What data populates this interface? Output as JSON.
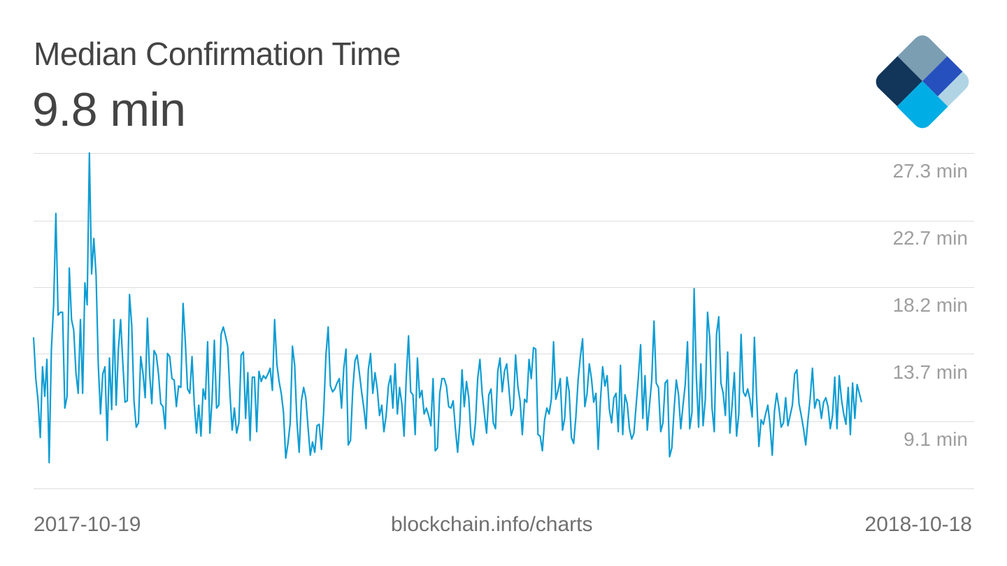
{
  "header": {
    "title": "Median Confirmation Time",
    "current_value": "9.8 min"
  },
  "logo": {
    "icon": "blockchain-diamond-logo-icon",
    "colors": {
      "top": "#7b9eb2",
      "left": "#12355a",
      "right": "#2650bd",
      "far_right": "#b0d4e4",
      "bottom": "#00ade4"
    }
  },
  "footer": {
    "start_date": "2017-10-19",
    "source": "blockchain.info/charts",
    "end_date": "2018-10-18"
  },
  "y_axis": {
    "labels": [
      "27.3 min",
      "22.7 min",
      "18.2 min",
      "13.7 min",
      "9.1 min"
    ]
  },
  "colors": {
    "line": "#0e9dd3",
    "grid": "#dddddd",
    "title_text": "#444444",
    "axis_text": "#9e9e9e",
    "footer_text": "#707070"
  },
  "chart_data": {
    "type": "line",
    "title": "Median Confirmation Time",
    "subtitle": "9.8 min",
    "xlabel": "",
    "ylabel": "min",
    "x_start": "2017-10-19",
    "x_end": "2018-10-18",
    "x_tick_labels": [
      "2017-10-19",
      "2018-10-18"
    ],
    "y_tick_labels": [
      "27.3 min",
      "22.7 min",
      "18.2 min",
      "13.7 min",
      "9.1 min"
    ],
    "y_ticks": [
      27.3,
      22.7,
      18.2,
      13.7,
      9.1,
      4.55
    ],
    "ylim": [
      4.55,
      27.3
    ],
    "grid": true,
    "legend": "none",
    "annotation": "blockchain.info/charts",
    "series": [
      {
        "name": "Median Confirmation Time (min)",
        "values": [
          14.8,
          12.0,
          10.5,
          8.0,
          12.8,
          10.8,
          13.3,
          6.3,
          14.0,
          17.0,
          23.2,
          16.3,
          16.5,
          16.5,
          10.0,
          10.8,
          19.5,
          16.0,
          15.3,
          12.4,
          11.0,
          16.0,
          11.0,
          18.5,
          17.0,
          27.3,
          19.1,
          21.5,
          19.0,
          13.0,
          9.6,
          12.3,
          12.8,
          7.8,
          13.4,
          9.9,
          16.0,
          10.2,
          14.0,
          16.0,
          13.0,
          10.4,
          10.5,
          17.7,
          15.6,
          10.5,
          8.7,
          9.0,
          13.5,
          12.4,
          10.7,
          16.1,
          12.3,
          10.3,
          13.9,
          13.6,
          12.3,
          10.3,
          10.1,
          8.6,
          13.7,
          13.5,
          12.0,
          11.9,
          10.1,
          11.5,
          11.4,
          17.1,
          14.5,
          11.3,
          11.0,
          13.5,
          10.3,
          8.3,
          10.2,
          8.1,
          11.3,
          10.6,
          14.5,
          8.3,
          10.6,
          14.6,
          10.0,
          10.2,
          15.0,
          15.5,
          14.9,
          14.2,
          11.0,
          8.5,
          10.0,
          8.3,
          9.0,
          13.6,
          13.8,
          9.3,
          12.4,
          7.8,
          12.1,
          12.1,
          8.4,
          12.5,
          11.8,
          12.2,
          12.0,
          12.3,
          12.7,
          11.2,
          16.0,
          13.0,
          11.8,
          11.0,
          9.7,
          6.6,
          7.6,
          9.0,
          14.2,
          12.9,
          9.1,
          7.0,
          10.5,
          11.4,
          10.7,
          8.7,
          6.8,
          7.7,
          7.0,
          8.8,
          8.9,
          7.2,
          9.8,
          13.6,
          15.5,
          11.5,
          11.1,
          11.3,
          11.7,
          12.0,
          10.0,
          12.7,
          14.0,
          7.5,
          7.8,
          11.2,
          13.2,
          13.6,
          12.4,
          11.1,
          10.0,
          8.6,
          12.6,
          13.7,
          11.0,
          12.4,
          11.3,
          9.5,
          10.2,
          8.4,
          9.5,
          11.5,
          12.2,
          10.0,
          13.0,
          9.6,
          11.4,
          10.3,
          8.1,
          12.1,
          14.9,
          11.1,
          10.9,
          8.2,
          13.4,
          10.7,
          11.2,
          9.6,
          10.0,
          9.5,
          8.8,
          12.0,
          7.1,
          7.3,
          11.0,
          12.0,
          12.0,
          11.5,
          10.1,
          10.0,
          10.5,
          8.6,
          7.0,
          9.0,
          12.6,
          10.1,
          11.8,
          10.7,
          8.1,
          7.5,
          9.0,
          12.0,
          13.3,
          11.0,
          9.6,
          8.3,
          10.9,
          11.3,
          9.0,
          8.6,
          12.5,
          13.4,
          11.1,
          12.5,
          13.0,
          11.3,
          9.5,
          10.0,
          13.6,
          11.5,
          10.5,
          8.2,
          10.6,
          10.4,
          13.3,
          12.0,
          14.1,
          14.0,
          8.2,
          8.1,
          7.1,
          9.2,
          10.0,
          9.6,
          10.6,
          14.5,
          10.6,
          11.2,
          12.0,
          8.5,
          9.3,
          12.1,
          11.1,
          8.0,
          7.6,
          9.4,
          11.9,
          13.5,
          14.7,
          10.1,
          11.0,
          13.0,
          12.0,
          10.4,
          11.0,
          7.2,
          10.5,
          12.8,
          11.5,
          12.2,
          9.9,
          9.0,
          10.7,
          11.0,
          8.4,
          12.9,
          8.2,
          10.9,
          10.3,
          8.6,
          7.9,
          8.3,
          10.2,
          12.1,
          14.3,
          9.3,
          12.2,
          8.5,
          10.2,
          11.9,
          15.9,
          11.7,
          11.4,
          8.4,
          9.0,
          11.7,
          11.9,
          6.7,
          7.3,
          9.9,
          11.9,
          10.9,
          8.6,
          10.2,
          11.6,
          14.5,
          8.6,
          9.7,
          18.1,
          12.1,
          8.7,
          13.0,
          8.8,
          10.6,
          16.5,
          14.7,
          10.0,
          8.4,
          15.0,
          16.2,
          11.7,
          11.0,
          9.5,
          13.8,
          8.3,
          10.2,
          12.4,
          8.1,
          9.6,
          15.0,
          11.1,
          10.8,
          11.3,
          10.6,
          9.4,
          14.8,
          10.7,
          7.4,
          9.2,
          8.9,
          9.6,
          10.2,
          8.8,
          6.8,
          9.8,
          11.0,
          10.0,
          8.7,
          9.0,
          10.7,
          8.8,
          9.5,
          10.2,
          12.3,
          12.6,
          10.3,
          9.5,
          8.6,
          7.5,
          9.2,
          10.7,
          12.7,
          10.0,
          10.6,
          10.5,
          9.3,
          10.4,
          10.7,
          10.1,
          8.6,
          9.5,
          12.1,
          8.6,
          12.2,
          10.6,
          9.6,
          8.9,
          11.4,
          8.2,
          11.7,
          9.3,
          11.6,
          11.0,
          10.4
        ]
      }
    ]
  }
}
